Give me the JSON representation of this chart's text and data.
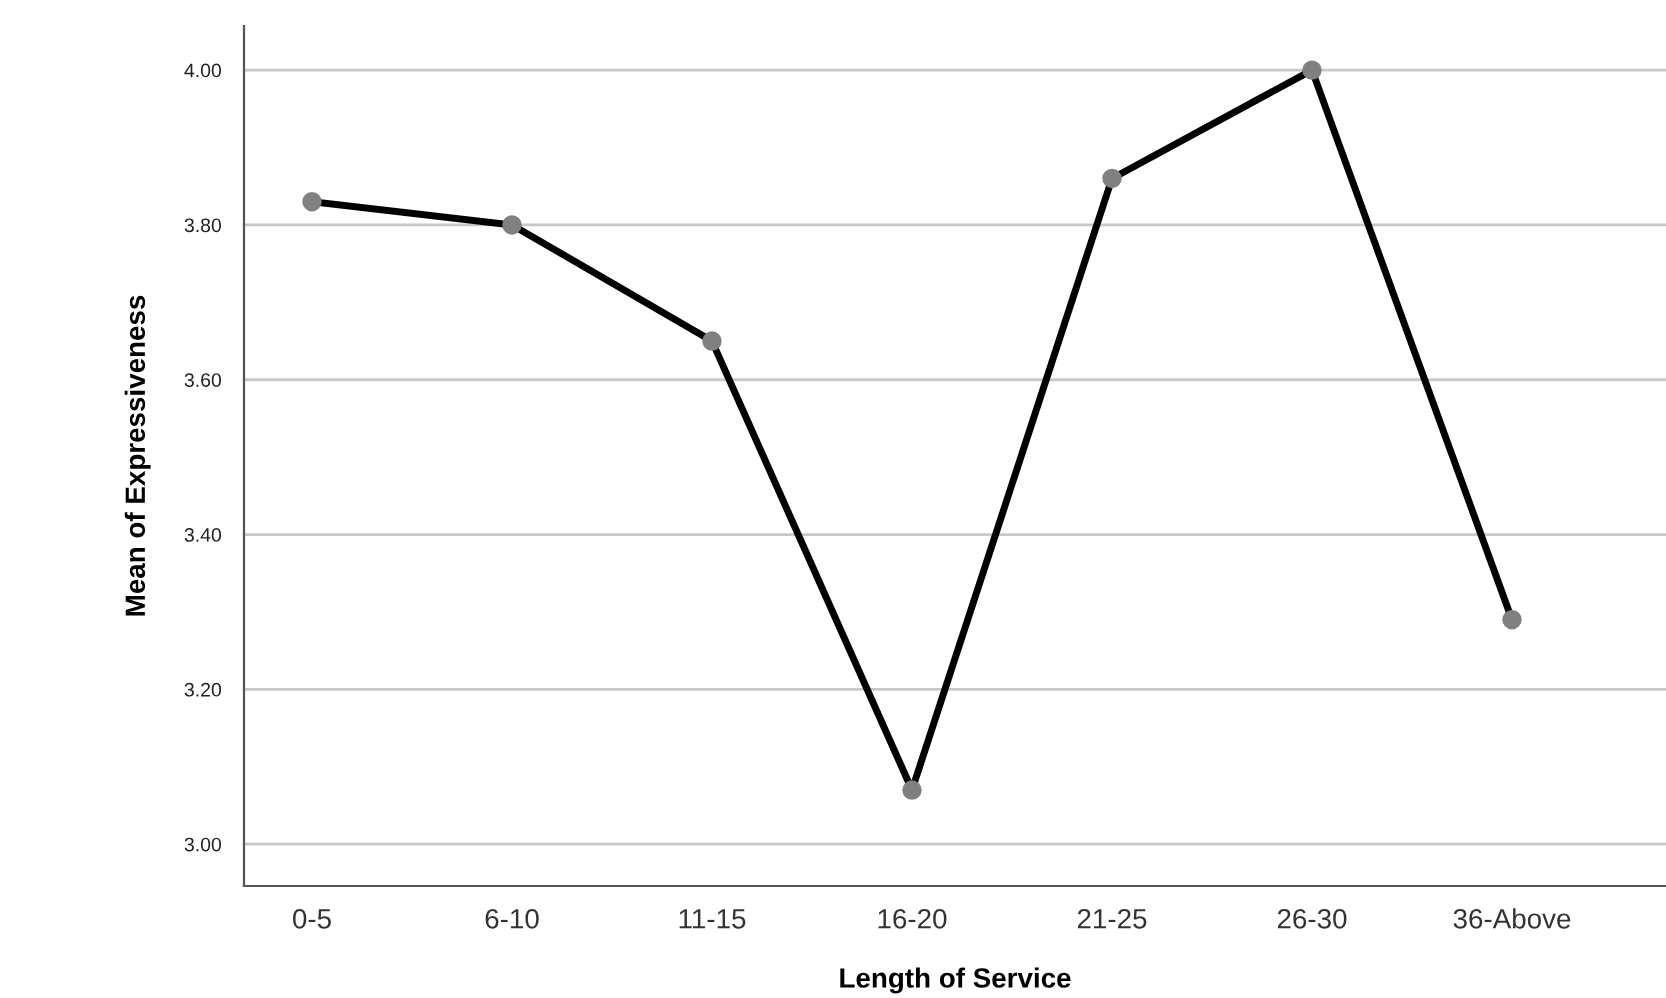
{
  "chart_data": {
    "type": "line",
    "xlabel": "Length of Service",
    "ylabel": "Mean of Expressiveness",
    "categories": [
      "0-5",
      "6-10",
      "11-15",
      "16-20",
      "21-25",
      "26-30",
      "36-Above"
    ],
    "series": [
      {
        "color": "#000000",
        "values": [
          3.83,
          3.8,
          3.65,
          3.07,
          3.86,
          4.0,
          3.29
        ]
      }
    ],
    "ylim": [
      2.946,
      4.057
    ],
    "yticks": [
      {
        "value": 3.0,
        "label": "3.00"
      },
      {
        "value": 3.2,
        "label": "3.20"
      },
      {
        "value": 3.4,
        "label": "3.40"
      },
      {
        "value": 3.6,
        "label": "3.60"
      },
      {
        "value": 3.8,
        "label": "3.80"
      },
      {
        "value": 4.0,
        "label": "4.00"
      }
    ],
    "grid": "y",
    "marker": "circle",
    "line_style": "solid"
  }
}
